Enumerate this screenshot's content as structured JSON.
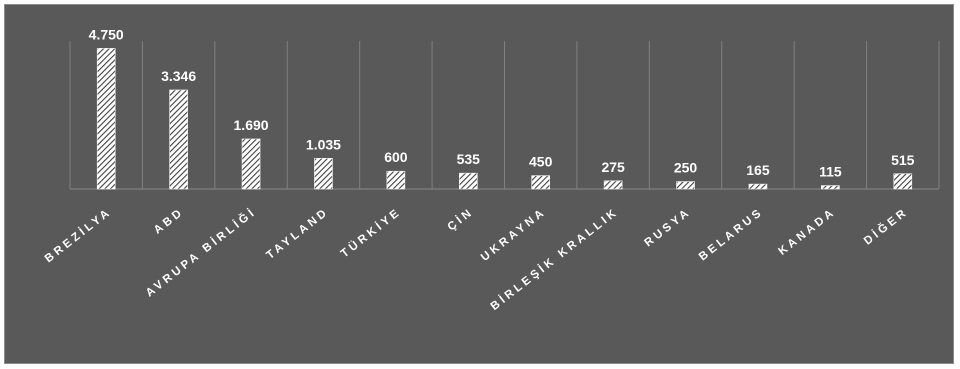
{
  "chart_data": {
    "type": "bar",
    "title": "",
    "xlabel": "",
    "ylabel": "",
    "categories": [
      "BREZİLYA",
      "ABD",
      "AVRUPA BİRLİĞİ",
      "TAYLAND",
      "TÜRKİYE",
      "ÇİN",
      "UKRAYNA",
      "BİRLEŞİK KRALLIK",
      "RUSYA",
      "BELARUS",
      "KANADA",
      "DİĞER"
    ],
    "values": [
      4750,
      3346,
      1690,
      1035,
      600,
      535,
      450,
      275,
      250,
      165,
      115,
      515
    ],
    "value_labels": [
      "4.750",
      "3.346",
      "1.690",
      "1.035",
      "600",
      "535",
      "450",
      "275",
      "250",
      "165",
      "115",
      "515"
    ],
    "ylim": [
      0,
      5000
    ],
    "grid": "vertical category separators",
    "legend": "none",
    "colors": {
      "background": "#595959",
      "bar_fill": "#ffffff",
      "bar_hatch": "#404040",
      "text": "#ffffff",
      "gridline": "#808080"
    }
  }
}
